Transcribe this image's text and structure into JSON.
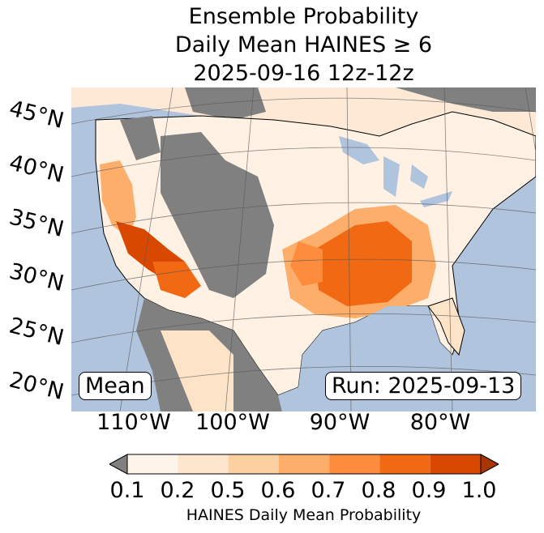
{
  "title": {
    "line1": "Ensemble Probability",
    "line2": "Daily Mean HAINES ≥ 6",
    "line3": "2025-09-16 12z-12z"
  },
  "labels": {
    "mean": "Mean",
    "run": "Run: 2025-09-13"
  },
  "lat_labels": [
    "45°N",
    "40°N",
    "35°N",
    "30°N",
    "25°N",
    "20°N"
  ],
  "lon_labels": [
    "110°W",
    "100°W",
    "90°W",
    "80°W"
  ],
  "colorbar": {
    "ticks": [
      "0.1",
      "0.2",
      "0.5",
      "0.6",
      "0.7",
      "0.8",
      "0.9",
      "1.0"
    ],
    "colors": [
      "#fff5eb",
      "#fee6ce",
      "#fdd0a2",
      "#fdae6b",
      "#fd8d3c",
      "#f16913",
      "#d94801",
      "#a63603"
    ],
    "under_color": "#808080",
    "label": "HAINES Daily Mean Probability"
  },
  "colors": {
    "ocean": "#b0c4de",
    "land_low": "#808080",
    "text": "#000000"
  }
}
